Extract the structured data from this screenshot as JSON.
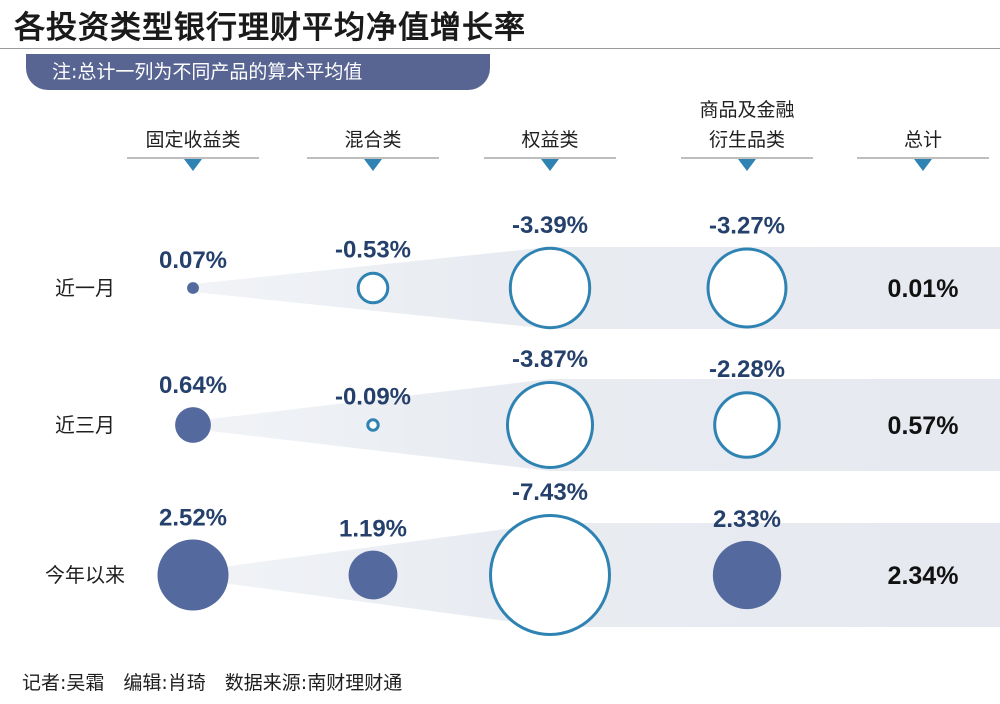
{
  "title": "各投资类型银行理财平均净值增长率",
  "note": "注:总计一列为不同产品的算术平均值",
  "footer": "记者:吴霜　编辑:肖琦　数据来源:南财理财通",
  "colors": {
    "header_bar": "#586592",
    "positive_fill": "#546a9e",
    "negative_stroke": "#2f83b3",
    "value_text": "#24406b",
    "band": "#e6eaf0"
  },
  "chart_data": {
    "type": "bubble-table",
    "columns": [
      "固定收益类",
      "混合类",
      "权益类",
      "商品及金融衍生品类",
      "总计"
    ],
    "column_header_lines": [
      [
        "固定收益类"
      ],
      [
        "混合类"
      ],
      [
        "权益类"
      ],
      [
        "商品及金融",
        "衍生品类"
      ],
      [
        "总计"
      ]
    ],
    "rows": [
      "近一月",
      "近三月",
      "今年以来"
    ],
    "values": [
      [
        0.07,
        -0.53,
        -3.39,
        -3.27
      ],
      [
        0.64,
        -0.09,
        -3.87,
        -2.28
      ],
      [
        2.52,
        1.19,
        -7.43,
        2.33
      ]
    ],
    "labels": [
      [
        "0.07%",
        "-0.53%",
        "-3.39%",
        "-3.27%"
      ],
      [
        "0.64%",
        "-0.09%",
        "-3.87%",
        "-2.28%"
      ],
      [
        "2.52%",
        "1.19%",
        "-7.43%",
        "2.33%"
      ]
    ],
    "totals": [
      0.01,
      0.57,
      2.34
    ],
    "total_labels": [
      "0.01%",
      "0.57%",
      "2.34%"
    ],
    "unit": "%",
    "encoding": "bubble area ∝ |value|; filled = positive, outlined = negative"
  }
}
